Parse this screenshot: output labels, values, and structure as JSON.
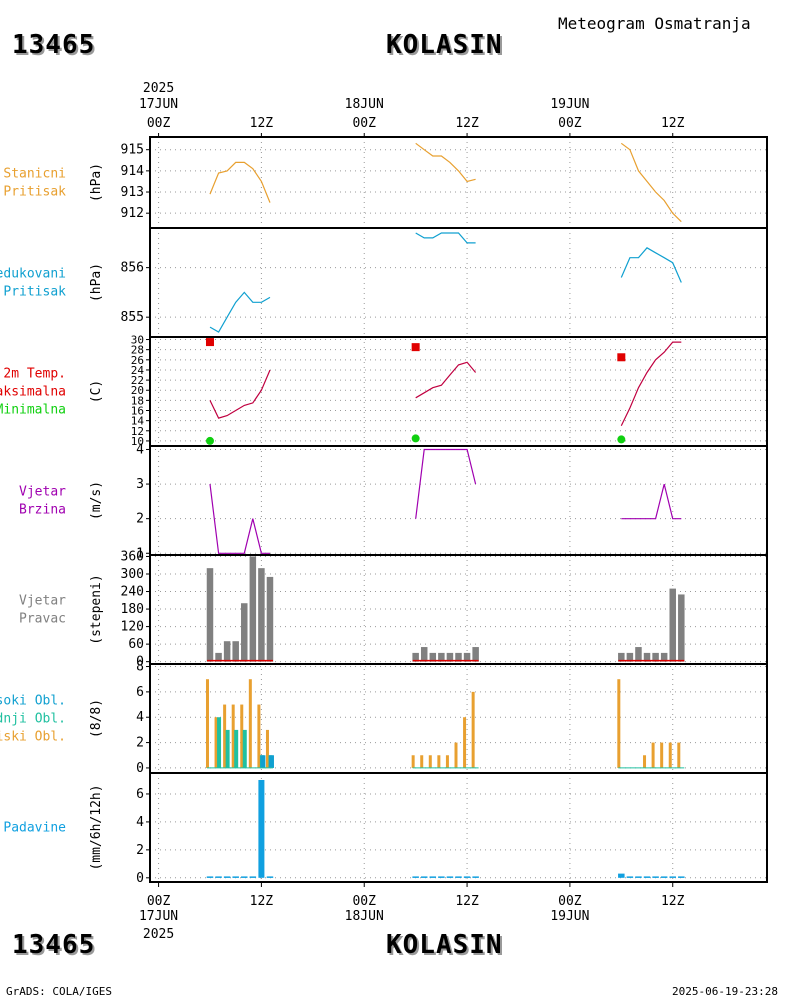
{
  "header": {
    "station_id": "13465",
    "station_name": "KOLASIN",
    "subtitle": "Meteogram Osmatranja"
  },
  "footer": {
    "station_id": "13465",
    "station_name": "KOLASIN",
    "software": "GrADS: COLA/IGES",
    "timestamp": "2025-06-19-23:28"
  },
  "time_axis": {
    "year": "2025",
    "day_labels": [
      "17JUN",
      "18JUN",
      "19JUN"
    ],
    "hour_labels": [
      "00Z",
      "12Z",
      "00Z",
      "12Z",
      "00Z",
      "12Z"
    ],
    "range_hours": [
      -1,
      71
    ]
  },
  "colors": {
    "orange": "#e8a030",
    "cyan": "#10a0d0",
    "red": "#e00000",
    "green": "#10d010",
    "purple": "#a000b0",
    "gray": "#808080",
    "teal": "#20c0a0",
    "precip": "#10a0e0"
  },
  "chart_data": [
    {
      "id": "pressure",
      "type": "line",
      "label_lines": [
        "Stanicni",
        "Pritisak"
      ],
      "ylabel": "(hPa)",
      "yticks": [
        912,
        913,
        914,
        915
      ],
      "ylim": [
        911.3,
        915.6
      ],
      "series": [
        {
          "name": "Stanicni Pritisak",
          "color": "#e8a030",
          "segments": [
            {
              "x": [
                6,
                7,
                8,
                9,
                10,
                11,
                12,
                13
              ],
              "y": [
                912.9,
                913.9,
                914.0,
                914.4,
                914.4,
                914.1,
                913.5,
                912.5
              ]
            },
            {
              "x": [
                30,
                31,
                32,
                33,
                34,
                35,
                36,
                37
              ],
              "y": [
                915.3,
                915.0,
                914.7,
                914.7,
                914.4,
                914.0,
                913.5,
                913.6
              ]
            },
            {
              "x": [
                54,
                55,
                56,
                57,
                58,
                59,
                60,
                61
              ],
              "y": [
                915.3,
                915.0,
                914.0,
                913.5,
                913.0,
                912.6,
                912.0,
                911.6
              ]
            }
          ]
        }
      ]
    },
    {
      "id": "reduced_pressure",
      "type": "line",
      "label_lines": [
        "Redukovani",
        "Pritisak"
      ],
      "ylabel": "(hPa)",
      "yticks": [
        855,
        856
      ],
      "ylim": [
        854.6,
        856.8
      ],
      "series": [
        {
          "name": "Redukovani Pritisak",
          "color": "#10a0d0",
          "segments": [
            {
              "x": [
                6,
                7,
                8,
                9,
                10,
                11,
                12,
                13
              ],
              "y": [
                854.8,
                854.7,
                855.0,
                855.3,
                855.5,
                855.3,
                855.3,
                855.4
              ]
            },
            {
              "x": [
                30,
                31,
                32,
                33,
                34,
                35,
                36,
                37
              ],
              "y": [
                856.7,
                856.6,
                856.6,
                856.7,
                856.7,
                856.7,
                856.5,
                856.5
              ]
            },
            {
              "x": [
                54,
                55,
                56,
                57,
                58,
                59,
                60,
                61
              ],
              "y": [
                855.8,
                856.2,
                856.2,
                856.4,
                856.3,
                856.2,
                856.1,
                855.7
              ]
            }
          ]
        }
      ]
    },
    {
      "id": "temperature",
      "type": "line",
      "label_lines": [
        "2m Temp.",
        "Maksimalna",
        "Minimalna"
      ],
      "label_colors": [
        "#e00000",
        "#e00000",
        "#10d010"
      ],
      "ylabel": "(C)",
      "yticks": [
        10,
        12,
        14,
        16,
        18,
        20,
        22,
        24,
        26,
        28,
        30
      ],
      "ylim": [
        9,
        30.5
      ],
      "series": [
        {
          "name": "2m Temp.",
          "color": "#c00040",
          "segments": [
            {
              "x": [
                6,
                7,
                8,
                9,
                10,
                11,
                12,
                13
              ],
              "y": [
                18.0,
                14.5,
                15.0,
                16.0,
                17.0,
                17.5,
                20.0,
                24.0
              ]
            },
            {
              "x": [
                30,
                31,
                32,
                33,
                34,
                35,
                36,
                37
              ],
              "y": [
                18.5,
                19.5,
                20.5,
                21.0,
                23.0,
                25.0,
                25.5,
                23.5
              ]
            },
            {
              "x": [
                54,
                55,
                56,
                57,
                58,
                59,
                60,
                61
              ],
              "y": [
                13.0,
                16.5,
                20.5,
                23.5,
                26.0,
                27.5,
                29.5,
                29.5
              ]
            }
          ]
        },
        {
          "name": "Maksimalna",
          "color": "#e00000",
          "marker": "square",
          "points": {
            "x": [
              6,
              30,
              54
            ],
            "y": [
              29.5,
              28.5,
              26.5
            ]
          }
        },
        {
          "name": "Minimalna",
          "color": "#10d010",
          "marker": "circle",
          "points": {
            "x": [
              6,
              30,
              54
            ],
            "y": [
              10.0,
              10.5,
              10.3
            ]
          }
        }
      ]
    },
    {
      "id": "wind_speed",
      "type": "line",
      "label_lines": [
        "Vjetar",
        "Brzina"
      ],
      "ylabel": "(m/s)",
      "yticks": [
        1,
        2,
        3,
        4
      ],
      "ylim": [
        0.95,
        4.1
      ],
      "series": [
        {
          "name": "Vjetar Brzina",
          "color": "#a000b0",
          "segments": [
            {
              "x": [
                6,
                7,
                8,
                9,
                10,
                11,
                12,
                13
              ],
              "y": [
                3,
                1,
                1,
                1,
                1,
                2,
                1,
                1
              ]
            },
            {
              "x": [
                30,
                31,
                32,
                33,
                34,
                35,
                36,
                37
              ],
              "y": [
                2,
                4,
                4,
                4,
                4,
                4,
                4,
                3
              ]
            },
            {
              "x": [
                54,
                55,
                56,
                57,
                58,
                59,
                60,
                61
              ],
              "y": [
                2,
                2,
                2,
                2,
                2,
                3,
                2,
                2
              ]
            }
          ]
        }
      ]
    },
    {
      "id": "wind_direction",
      "type": "bar",
      "label_lines": [
        "Vjetar",
        "Pravac"
      ],
      "ylabel": "(stepeni)",
      "yticks": [
        0,
        60,
        120,
        180,
        240,
        300,
        360
      ],
      "ylim": [
        -8,
        365
      ],
      "series": [
        {
          "name": "Vjetar Pravac",
          "color": "#808080",
          "x": [
            6,
            7,
            8,
            9,
            10,
            11,
            12,
            13,
            30,
            31,
            32,
            33,
            34,
            35,
            36,
            37,
            54,
            55,
            56,
            57,
            58,
            59,
            60,
            61
          ],
          "values": [
            320,
            30,
            70,
            70,
            200,
            360,
            320,
            290,
            30,
            50,
            30,
            30,
            30,
            30,
            30,
            50,
            30,
            30,
            50,
            30,
            30,
            30,
            250,
            230
          ]
        }
      ]
    },
    {
      "id": "clouds",
      "type": "bar",
      "label_lines": [
        "Visoki Obl.",
        "Srednji Obl.",
        "Niski Obl."
      ],
      "label_colors": [
        "#10a0d0",
        "#20c0a0",
        "#e8a030"
      ],
      "ylabel": "(8/8)",
      "yticks": [
        0,
        2,
        4,
        6,
        8
      ],
      "ylim": [
        -0.4,
        8.2
      ],
      "series": [
        {
          "name": "Niski Obl.",
          "color": "#e8a030",
          "x": [
            6,
            7,
            8,
            9,
            10,
            11,
            12,
            13,
            30,
            31,
            32,
            33,
            34,
            35,
            36,
            37,
            54,
            55,
            56,
            57,
            58,
            59,
            60,
            61
          ],
          "values": [
            7,
            4,
            5,
            5,
            5,
            7,
            5,
            3,
            1,
            1,
            1,
            1,
            1,
            2,
            4,
            6,
            7,
            0,
            0,
            1,
            2,
            2,
            2,
            2
          ]
        },
        {
          "name": "Srednji Obl.",
          "color": "#20c0a0",
          "x": [
            6,
            7,
            8,
            9,
            10,
            11,
            12,
            13,
            30,
            31,
            32,
            33,
            34,
            35,
            36,
            37,
            54,
            55,
            56,
            57,
            58,
            59,
            60,
            61
          ],
          "values": [
            0,
            4,
            3,
            3,
            3,
            0,
            1,
            1,
            0,
            0,
            0,
            0,
            0,
            0,
            0,
            0,
            0,
            0,
            0,
            0,
            0,
            0,
            0,
            0
          ]
        },
        {
          "name": "Visoki Obl.",
          "color": "#10a0d0",
          "x": [
            6,
            7,
            8,
            9,
            10,
            11,
            12,
            13,
            30,
            31,
            32,
            33,
            34,
            35,
            36,
            37,
            54,
            55,
            56,
            57,
            58,
            59,
            60,
            61
          ],
          "values": [
            0,
            0,
            0,
            0,
            0,
            0,
            1,
            1,
            0,
            0,
            0,
            0,
            0,
            0,
            0,
            0,
            0,
            0,
            0,
            0,
            0,
            0,
            0,
            0
          ]
        }
      ]
    },
    {
      "id": "precipitation",
      "type": "bar",
      "label_lines": [
        "Padavine"
      ],
      "ylabel": "(mm/6h/12h)",
      "yticks": [
        0,
        2,
        4,
        6
      ],
      "ylim": [
        -0.3,
        7.5
      ],
      "series": [
        {
          "name": "Padavine",
          "color": "#10a0e0",
          "x": [
            6,
            7,
            8,
            9,
            10,
            11,
            12,
            13,
            30,
            31,
            32,
            33,
            34,
            35,
            36,
            37,
            54,
            55,
            56,
            57,
            58,
            59,
            60,
            61
          ],
          "values": [
            0.1,
            0.1,
            0.1,
            0.1,
            0.1,
            0.1,
            7.0,
            0.1,
            0.1,
            0.1,
            0.1,
            0.1,
            0.1,
            0.1,
            0.1,
            0.1,
            0.3,
            0.1,
            0.1,
            0.1,
            0.1,
            0.1,
            0.1,
            0.1
          ]
        }
      ]
    }
  ]
}
